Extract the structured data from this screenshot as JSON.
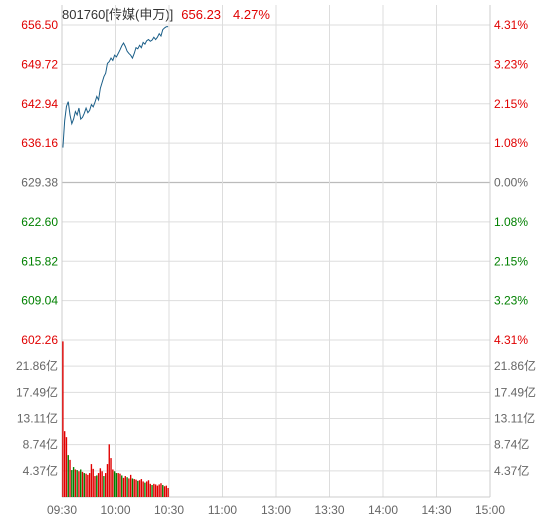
{
  "header": {
    "security": "801760[传媒(申万)]",
    "last_price": "656.23",
    "change_pct": "4.27%"
  },
  "colors": {
    "up": "#e00000",
    "down": "#008000",
    "neutral": "#666666",
    "grid": "#dddddd",
    "price_line": "#1a5e88"
  },
  "axes": {
    "price_labels": [
      "656.50",
      "649.72",
      "642.94",
      "636.16",
      "629.38",
      "622.60",
      "615.82",
      "609.04",
      "602.26"
    ],
    "pct_labels": [
      "4.31%",
      "3.23%",
      "2.15%",
      "1.08%",
      "0.00%",
      "1.08%",
      "2.15%",
      "3.23%",
      "4.31%"
    ],
    "volume_labels": [
      "21.86亿",
      "17.49亿",
      "13.11亿",
      "8.74亿",
      "4.37亿"
    ],
    "time_labels": [
      "09:30",
      "10:00",
      "10:30",
      "11:00",
      "13:00",
      "13:30",
      "14:00",
      "14:30",
      "15:00"
    ]
  },
  "chart_data": [
    {
      "type": "line",
      "title": "801760[传媒(申万)]",
      "x_unit": "minutes since 09:30 open",
      "ylim": [
        602.26,
        656.5
      ],
      "prev_close": 629.38,
      "series": [
        {
          "points": [
            [
              0,
              635.4
            ],
            [
              1,
              640.0
            ],
            [
              2,
              642.5
            ],
            [
              3,
              643.3
            ],
            [
              4,
              641.0
            ],
            [
              5,
              639.5
            ],
            [
              6,
              640.3
            ],
            [
              7,
              641.6
            ],
            [
              8,
              641.0
            ],
            [
              9,
              642.2
            ],
            [
              10,
              640.3
            ],
            [
              11,
              640.6
            ],
            [
              12,
              641.3
            ],
            [
              13,
              642.2
            ],
            [
              14,
              641.4
            ],
            [
              15,
              641.8
            ],
            [
              16,
              642.8
            ],
            [
              17,
              642.4
            ],
            [
              18,
              643.2
            ],
            [
              19,
              644.2
            ],
            [
              20,
              643.6
            ],
            [
              21,
              645.6
            ],
            [
              22,
              646.6
            ],
            [
              23,
              647.6
            ],
            [
              24,
              648.2
            ],
            [
              25,
              649.9
            ],
            [
              26,
              650.2
            ],
            [
              27,
              650.8
            ],
            [
              28,
              650.4
            ],
            [
              29,
              651.3
            ],
            [
              30,
              651.0
            ],
            [
              31,
              651.6
            ],
            [
              32,
              652.2
            ],
            [
              33,
              652.9
            ],
            [
              34,
              653.4
            ],
            [
              35,
              652.8
            ],
            [
              36,
              652.0
            ],
            [
              37,
              651.6
            ],
            [
              38,
              651.3
            ],
            [
              39,
              650.8
            ],
            [
              40,
              651.6
            ],
            [
              41,
              652.6
            ],
            [
              42,
              652.4
            ],
            [
              43,
              653.0
            ],
            [
              44,
              652.6
            ],
            [
              45,
              653.5
            ],
            [
              46,
              653.2
            ],
            [
              47,
              653.8
            ],
            [
              48,
              654.0
            ],
            [
              49,
              653.7
            ],
            [
              50,
              653.9
            ],
            [
              51,
              654.4
            ],
            [
              52,
              654.0
            ],
            [
              53,
              654.4
            ],
            [
              54,
              655.0
            ],
            [
              55,
              654.6
            ],
            [
              56,
              655.7
            ],
            [
              57,
              656.0
            ],
            [
              58,
              656.2
            ],
            [
              59,
              656.23
            ]
          ]
        }
      ]
    },
    {
      "type": "bar",
      "title": "",
      "x_unit": "minutes since 09:30 open",
      "y_unit": "亿",
      "ylim": [
        0,
        26.23
      ],
      "series": [
        {
          "values": [
            26.0,
            11.0,
            10.0,
            7.0,
            6.2,
            4.5,
            5.0,
            4.6,
            4.5,
            4.3,
            4.6,
            4.2,
            4.0,
            3.9,
            3.7,
            4.0,
            5.5,
            4.7,
            3.5,
            3.6,
            4.0,
            4.8,
            4.3,
            3.5,
            4.0,
            5.5,
            8.8,
            6.5,
            4.6,
            4.3,
            4.0,
            4.0,
            3.9,
            3.6,
            3.2,
            3.5,
            3.3,
            3.1,
            3.7,
            3.1,
            3.0,
            2.9,
            2.7,
            2.8,
            3.0,
            2.6,
            2.4,
            2.6,
            2.8,
            2.2,
            2.0,
            2.2,
            2.1,
            1.9,
            2.1,
            2.3,
            2.0,
            1.8,
            1.9,
            1.5
          ],
          "direction": [
            "up",
            "up",
            "up",
            "down",
            "up",
            "down",
            "down",
            "up",
            "down",
            "up",
            "down",
            "up",
            "down",
            "up",
            "up",
            "up",
            "up",
            "up",
            "up",
            "down",
            "up",
            "up",
            "up",
            "down",
            "up",
            "up",
            "up",
            "up",
            "up",
            "down",
            "down",
            "up",
            "up",
            "down",
            "up",
            "up",
            "down",
            "up",
            "up",
            "down",
            "up",
            "up",
            "down",
            "up",
            "up",
            "up",
            "down",
            "up",
            "up",
            "up",
            "down",
            "up",
            "up",
            "up",
            "up",
            "up",
            "down",
            "up",
            "up",
            "up"
          ]
        }
      ]
    }
  ]
}
